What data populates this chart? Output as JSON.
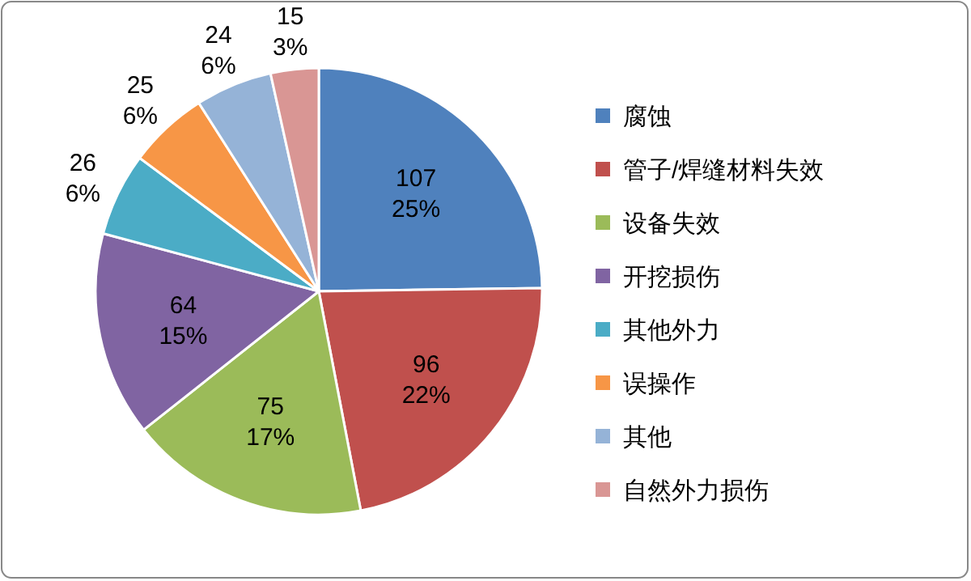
{
  "chart_data": {
    "type": "pie",
    "categories": [
      "腐蚀",
      "管子/焊缝材料失效",
      "设备失效",
      "开挖损伤",
      "其他外力",
      "误操作",
      "其他",
      "自然外力损伤"
    ],
    "values": [
      107,
      96,
      75,
      64,
      26,
      25,
      24,
      15
    ],
    "value_labels": [
      "107\n25%",
      "96\n22%",
      "75\n17%",
      "64\n15%",
      "26\n6%",
      "25\n6%",
      "24\n6%",
      "15\n3%"
    ],
    "colors": [
      "#4f81bd",
      "#c0504d",
      "#9bbb59",
      "#8064a2",
      "#4bacc6",
      "#f79646",
      "#95b3d7",
      "#d99694"
    ],
    "legend": "right"
  }
}
